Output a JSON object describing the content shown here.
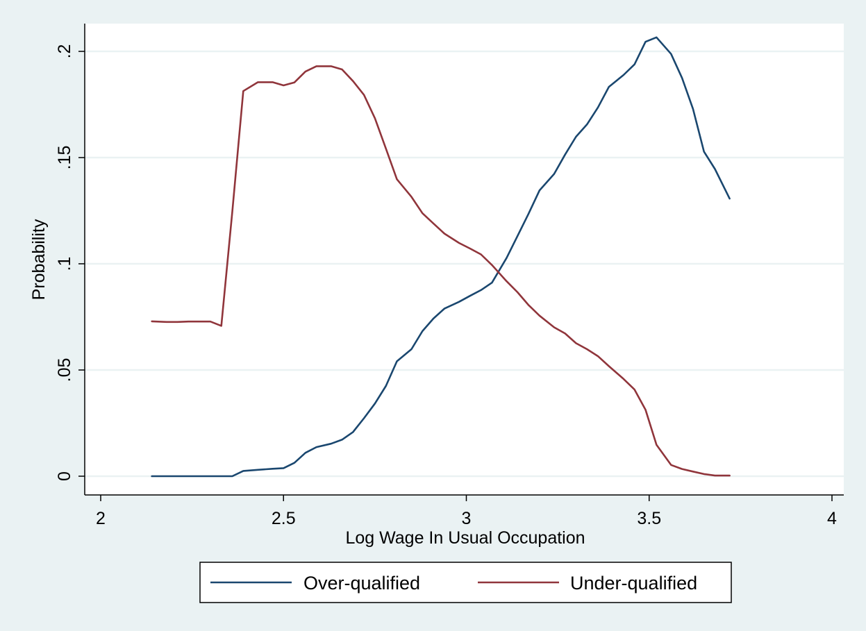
{
  "chart_data": {
    "type": "line",
    "title": "",
    "xlabel": "Log Wage In Usual Occupation",
    "ylabel": "Probability",
    "xlim": [
      2,
      4
    ],
    "ylim": [
      0,
      0.2
    ],
    "x_ticks": [
      2,
      2.5,
      3,
      3.5,
      4
    ],
    "x_tick_labels": [
      "2",
      "2.5",
      "3",
      "3.5",
      "4"
    ],
    "y_ticks": [
      0,
      0.05,
      0.1,
      0.15,
      0.2
    ],
    "y_tick_labels": [
      "0",
      ".05",
      ".1",
      ".15",
      ".2"
    ],
    "grid": true,
    "legend_position": "bottom",
    "series": [
      {
        "name": "Over-qualified",
        "color": "#1a476f",
        "x": [
          2.14,
          2.18,
          2.21,
          2.24,
          2.27,
          2.3,
          2.33,
          2.36,
          2.39,
          2.43,
          2.47,
          2.5,
          2.53,
          2.56,
          2.59,
          2.63,
          2.66,
          2.69,
          2.72,
          2.75,
          2.78,
          2.81,
          2.85,
          2.88,
          2.91,
          2.94,
          2.98,
          3.01,
          3.04,
          3.07,
          3.11,
          3.14,
          3.17,
          3.2,
          3.24,
          3.27,
          3.3,
          3.33,
          3.36,
          3.39,
          3.43,
          3.46,
          3.49,
          3.52,
          3.56,
          3.59,
          3.62,
          3.65,
          3.68,
          3.72
        ],
        "y": [
          0,
          0,
          0,
          0,
          0,
          0,
          0,
          0,
          0.0025,
          0.003,
          0.0035,
          0.0038,
          0.0063,
          0.011,
          0.0137,
          0.0153,
          0.0172,
          0.0208,
          0.0273,
          0.0342,
          0.0425,
          0.0541,
          0.0598,
          0.0683,
          0.0742,
          0.0789,
          0.0821,
          0.0849,
          0.0876,
          0.0911,
          0.1027,
          0.1131,
          0.1235,
          0.1345,
          0.1423,
          0.1514,
          0.1598,
          0.1656,
          0.1736,
          0.1833,
          0.1889,
          0.1939,
          0.2045,
          0.2066,
          0.1988,
          0.1875,
          0.1729,
          0.1528,
          0.1446,
          0.1307
        ]
      },
      {
        "name": "Under-qualified",
        "color": "#90353b",
        "x": [
          2.14,
          2.18,
          2.21,
          2.24,
          2.27,
          2.3,
          2.33,
          2.36,
          2.39,
          2.43,
          2.47,
          2.5,
          2.53,
          2.56,
          2.59,
          2.63,
          2.66,
          2.69,
          2.72,
          2.75,
          2.78,
          2.81,
          2.85,
          2.88,
          2.91,
          2.94,
          2.98,
          3.01,
          3.04,
          3.07,
          3.11,
          3.14,
          3.17,
          3.2,
          3.24,
          3.27,
          3.3,
          3.33,
          3.36,
          3.39,
          3.43,
          3.46,
          3.49,
          3.52,
          3.56,
          3.59,
          3.62,
          3.65,
          3.68,
          3.72
        ],
        "y": [
          0.0729,
          0.0726,
          0.0726,
          0.0728,
          0.0728,
          0.0728,
          0.0708,
          0.1245,
          0.1813,
          0.1855,
          0.1855,
          0.184,
          0.1854,
          0.1905,
          0.193,
          0.193,
          0.1915,
          0.186,
          0.1795,
          0.1685,
          0.1542,
          0.1398,
          0.1315,
          0.1238,
          0.119,
          0.1142,
          0.1098,
          0.1072,
          0.1044,
          0.0994,
          0.0918,
          0.0866,
          0.0806,
          0.0756,
          0.0701,
          0.0672,
          0.0626,
          0.0598,
          0.0565,
          0.0518,
          0.0458,
          0.0408,
          0.0313,
          0.0148,
          0.0053,
          0.0034,
          0.0022,
          0.001,
          0.0003,
          0.0003
        ]
      }
    ]
  }
}
